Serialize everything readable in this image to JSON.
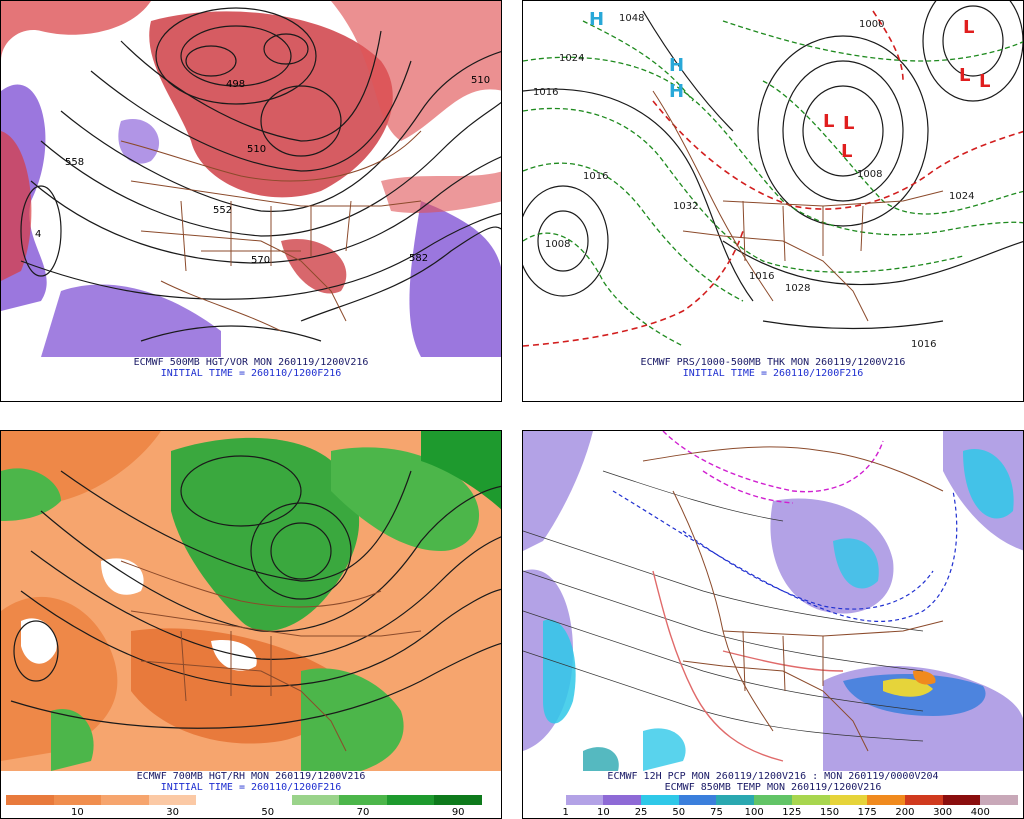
{
  "panels": {
    "p1": {
      "caption": "ECMWF 500MB HGT/VOR MON 260119/1200V216",
      "init": "INITIAL TIME = 260110/1200F216",
      "labels": [
        "4",
        "498",
        "510",
        "558",
        "552",
        "570",
        "582",
        "510"
      ]
    },
    "p2": {
      "caption": "ECMWF PRS/1000-500MB THK MON 260119/1200V216",
      "init": "INITIAL TIME = 260110/1200F216",
      "labels": [
        "1016",
        "1008",
        "1024",
        "1016",
        "1024",
        "1032",
        "1016",
        "1016",
        "1008",
        "1000",
        "1048",
        "1028"
      ],
      "highs": [
        "H",
        "H",
        "H"
      ],
      "lows": [
        "L",
        "L",
        "L",
        "L",
        "L",
        "L"
      ]
    },
    "p3": {
      "caption": "ECMWF 700MB HGT/RH MON 260119/1200V216",
      "init": "INITIAL TIME = 260110/1200F216",
      "colorbar": {
        "ticks": [
          "10",
          "30",
          "50",
          "70",
          "90"
        ],
        "colors": [
          "#e87a3c",
          "#f08e4e",
          "#f6a56e",
          "#fbc9a5",
          "#ffffff",
          "#ffffff",
          "#9ad38a",
          "#4cb64a",
          "#1e9a2e",
          "#0e7a1c"
        ]
      }
    },
    "p4": {
      "caption1": "ECMWF 12H PCP MON 260119/1200V216 : MON 260119/0000V204",
      "caption2": "ECMWF 850MB TEMP MON 260119/1200V216",
      "colorbar": {
        "ticks": [
          "1",
          "10",
          "25",
          "50",
          "75",
          "100",
          "125",
          "150",
          "175",
          "200",
          "300",
          "400"
        ],
        "colors": [
          "#ffffff",
          "#b3a2e6",
          "#8e6ad6",
          "#2fc8e8",
          "#3b7fdc",
          "#2aa8b0",
          "#62c466",
          "#a8d64e",
          "#e6d43a",
          "#f08a1e",
          "#d03a1e",
          "#8a0e0e",
          "#c8a8b8"
        ]
      }
    }
  }
}
